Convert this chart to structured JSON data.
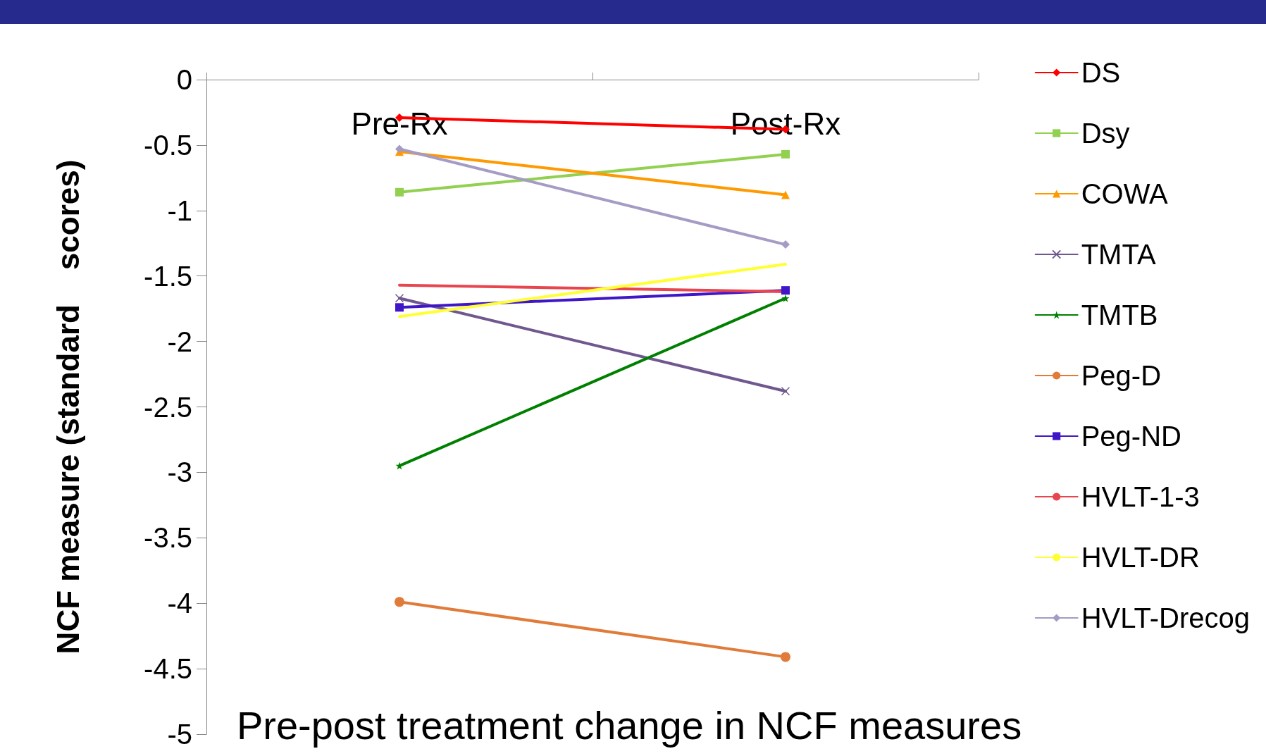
{
  "chart_data": {
    "type": "line",
    "title": "Pre-post treatment change in NCF measures",
    "ylabel": "NCF measure (standard    scores)",
    "categories": [
      "Pre-Rx",
      "Post-Rx"
    ],
    "ylim": [
      -5,
      0
    ],
    "yticks": [
      0,
      -0.5,
      -1,
      -1.5,
      -2,
      -2.5,
      -3,
      -3.5,
      -4,
      -4.5,
      -5
    ],
    "grid": false,
    "legend": "right",
    "series": [
      {
        "name": "DS",
        "color": "#ff0000",
        "marker": "diamond",
        "values": [
          -0.29,
          -0.38
        ]
      },
      {
        "name": "Dsy",
        "color": "#92d050",
        "marker": "square",
        "values": [
          -0.86,
          -0.57
        ]
      },
      {
        "name": "COWA",
        "color": "#ff9900",
        "marker": "triangle",
        "values": [
          -0.55,
          -0.88
        ]
      },
      {
        "name": "TMTA",
        "color": "#70588f",
        "marker": "cross",
        "values": [
          -1.67,
          -2.38
        ]
      },
      {
        "name": "TMTB",
        "color": "#008000",
        "marker": "star",
        "values": [
          -2.95,
          -1.67
        ]
      },
      {
        "name": "Peg-D",
        "color": "#e07b39",
        "marker": "circle",
        "values": [
          -3.99,
          -4.41
        ]
      },
      {
        "name": "Peg-ND",
        "color": "#3f16c8",
        "marker": "square",
        "values": [
          -1.74,
          -1.61
        ]
      },
      {
        "name": "HVLT-1-3",
        "color": "#e8454f",
        "marker": "none",
        "values": [
          -1.57,
          -1.62
        ]
      },
      {
        "name": "HVLT-DR",
        "color": "#ffff33",
        "marker": "none",
        "values": [
          -1.81,
          -1.41
        ]
      },
      {
        "name": "HVLT-Drecog",
        "color": "#a69bc4",
        "marker": "diamond",
        "values": [
          -0.53,
          -1.26
        ]
      }
    ]
  }
}
